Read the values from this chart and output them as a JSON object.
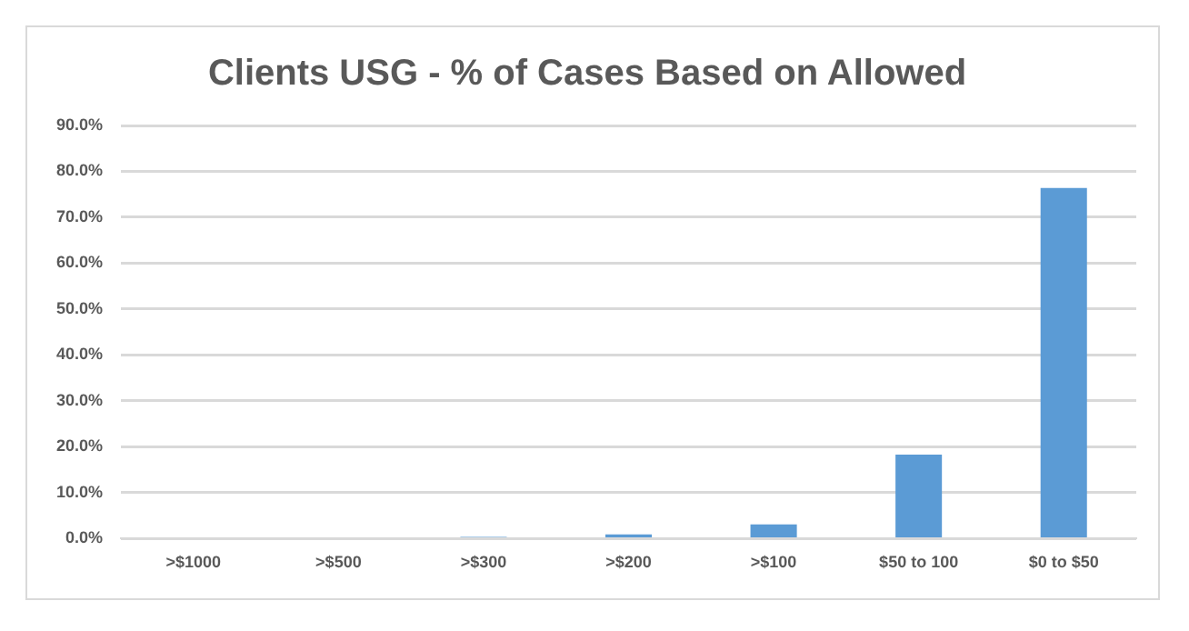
{
  "chart_data": {
    "type": "bar",
    "title": "Clients USG - % of Cases Based on Allowed",
    "categories": [
      ">$1000",
      ">$500",
      ">$300",
      ">$200",
      ">$100",
      "$50 to 100",
      "$0 to $50"
    ],
    "values": [
      0,
      0,
      0.4,
      0.9,
      3.1,
      18.3,
      76.4
    ],
    "color": "#5b9bd5",
    "ylim": [
      0,
      90
    ],
    "yticks": [
      {
        "value": 0,
        "label": "0.0%"
      },
      {
        "value": 10,
        "label": "10.0%"
      },
      {
        "value": 20,
        "label": "20.0%"
      },
      {
        "value": 30,
        "label": "30.0%"
      },
      {
        "value": 40,
        "label": "40.0%"
      },
      {
        "value": 50,
        "label": "50.0%"
      },
      {
        "value": 60,
        "label": "60.0%"
      },
      {
        "value": 70,
        "label": "70.0%"
      },
      {
        "value": 80,
        "label": "80.0%"
      },
      {
        "value": 90,
        "label": "90.0%"
      }
    ],
    "grid": "y"
  }
}
